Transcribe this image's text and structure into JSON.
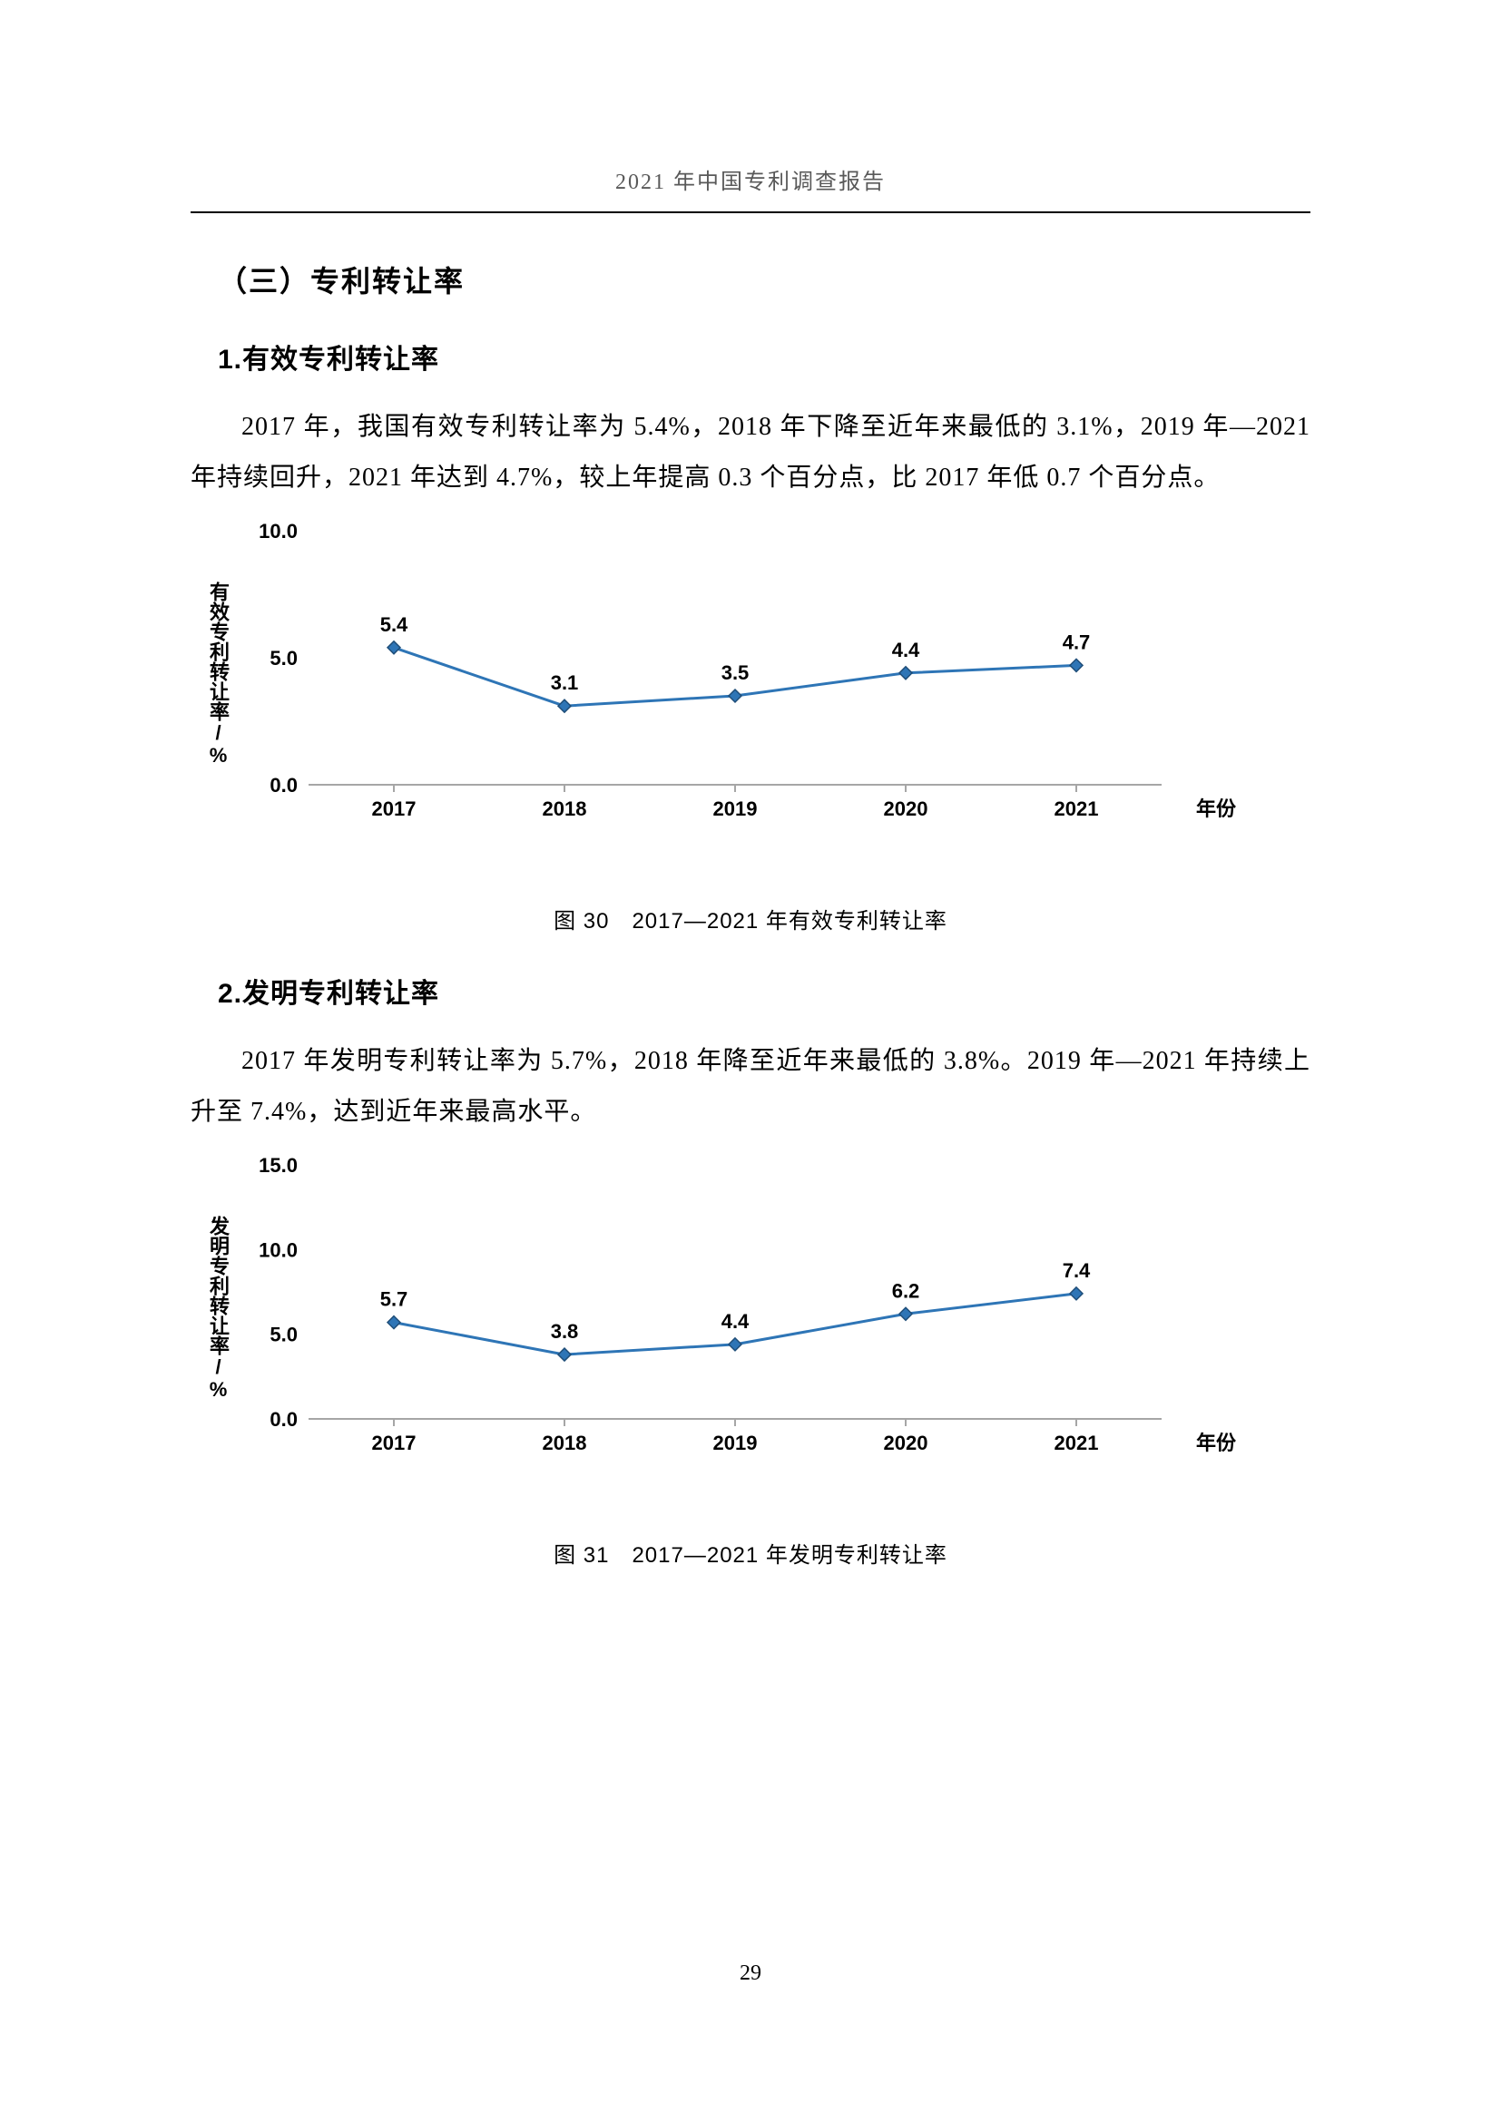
{
  "header": "2021 年中国专利调查报告",
  "section_title": "（三）专利转让率",
  "sub1_title": "1.有效专利转让率",
  "para1": "2017 年，我国有效专利转让率为 5.4%，2018 年下降至近年来最低的 3.1%，2019 年—2021 年持续回升，2021 年达到 4.7%，较上年提高 0.3 个百分点，比 2017 年低 0.7 个百分点。",
  "chart1": {
    "type": "line",
    "categories": [
      "2017",
      "2018",
      "2019",
      "2020",
      "2021"
    ],
    "values": [
      5.4,
      3.1,
      3.5,
      4.4,
      4.7
    ],
    "value_labels": [
      "5.4",
      "3.1",
      "3.5",
      "4.4",
      "4.7"
    ],
    "ylabel": "有效专利转让率/%",
    "xlabel": "年份",
    "ylim": [
      0,
      10
    ],
    "yticks": [
      0.0,
      5.0,
      10.0
    ],
    "ytick_labels": [
      "0.0",
      "5.0",
      "10.0"
    ],
    "line_color": "#2e75b6",
    "marker_fill": "#2e75b6",
    "marker_stroke": "#1f4e79",
    "text_color": "#000000",
    "axis_color": "#a6a6a6",
    "background_color": "#ffffff",
    "line_width": 3,
    "marker_size": 7
  },
  "caption1": "图 30　2017—2021 年有效专利转让率",
  "sub2_title": "2.发明专利转让率",
  "para2": "2017 年发明专利转让率为 5.7%，2018 年降至近年来最低的 3.8%。2019 年—2021 年持续上升至 7.4%，达到近年来最高水平。",
  "chart2": {
    "type": "line",
    "categories": [
      "2017",
      "2018",
      "2019",
      "2020",
      "2021"
    ],
    "values": [
      5.7,
      3.8,
      4.4,
      6.2,
      7.4
    ],
    "value_labels": [
      "5.7",
      "3.8",
      "4.4",
      "6.2",
      "7.4"
    ],
    "ylabel": "发明专利转让率/%",
    "xlabel": "年份",
    "ylim": [
      0,
      15
    ],
    "yticks": [
      0.0,
      5.0,
      10.0,
      15.0
    ],
    "ytick_labels": [
      "0.0",
      "5.0",
      "10.0",
      "15.0"
    ],
    "line_color": "#2e75b6",
    "marker_fill": "#2e75b6",
    "marker_stroke": "#1f4e79",
    "text_color": "#000000",
    "axis_color": "#a6a6a6",
    "background_color": "#ffffff",
    "line_width": 3,
    "marker_size": 7
  },
  "caption2": "图 31　2017—2021 年发明专利转让率",
  "page_number": "29"
}
